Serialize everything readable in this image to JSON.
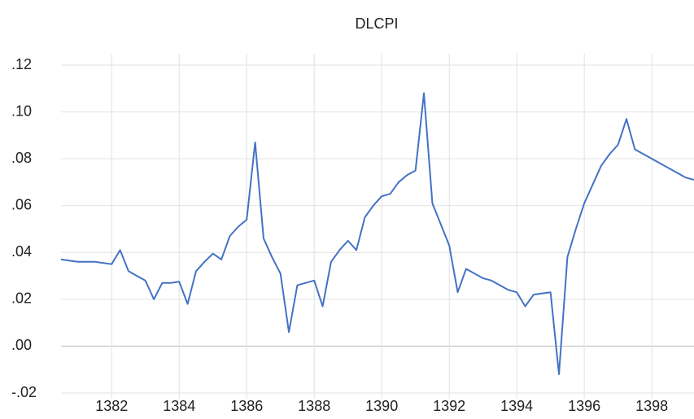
{
  "chart_data": {
    "type": "line",
    "title": "DLCPI",
    "x": [
      1380.5,
      1380.75,
      1381,
      1381.25,
      1381.5,
      1381.75,
      1382,
      1382.25,
      1382.5,
      1382.75,
      1383,
      1383.25,
      1383.5,
      1383.75,
      1384,
      1384.25,
      1384.5,
      1384.75,
      1385,
      1385.25,
      1385.5,
      1385.75,
      1386,
      1386.25,
      1386.5,
      1386.75,
      1387,
      1387.25,
      1387.5,
      1387.75,
      1388,
      1388.25,
      1388.5,
      1388.75,
      1389,
      1389.25,
      1389.5,
      1389.75,
      1390,
      1390.25,
      1390.5,
      1390.75,
      1391,
      1391.25,
      1391.5,
      1391.75,
      1392,
      1392.25,
      1392.5,
      1392.75,
      1393,
      1393.25,
      1393.5,
      1393.75,
      1394,
      1394.25,
      1394.5,
      1394.75,
      1395,
      1395.25,
      1395.5,
      1395.75,
      1396,
      1396.25,
      1396.5,
      1396.75,
      1397,
      1397.25,
      1397.5,
      1397.75,
      1398,
      1398.25,
      1398.5,
      1398.75,
      1399,
      1399.25
    ],
    "series": [
      {
        "name": "DLCPI",
        "color": "#4472c4",
        "values": [
          0.037,
          0.0365,
          0.036,
          0.036,
          0.036,
          0.0355,
          0.035,
          0.041,
          0.032,
          0.03,
          0.028,
          0.02,
          0.027,
          0.027,
          0.0275,
          0.018,
          0.032,
          0.036,
          0.0395,
          0.037,
          0.047,
          0.051,
          0.054,
          0.087,
          0.046,
          0.038,
          0.031,
          0.006,
          0.026,
          0.027,
          0.028,
          0.017,
          0.036,
          0.041,
          0.045,
          0.041,
          0.055,
          0.06,
          0.064,
          0.065,
          0.07,
          0.073,
          0.075,
          0.108,
          0.061,
          0.052,
          0.043,
          0.023,
          0.033,
          0.031,
          0.029,
          0.028,
          0.026,
          0.024,
          0.023,
          0.017,
          0.022,
          0.0225,
          0.023,
          -0.012,
          0.038,
          0.05,
          0.061,
          0.069,
          0.077,
          0.082,
          0.086,
          0.097,
          0.084,
          0.082,
          0.08,
          0.078,
          0.076,
          0.074,
          0.072,
          0.071
        ]
      }
    ],
    "xlim": [
      1380.5,
      1399.25
    ],
    "xticks": [
      1382,
      1384,
      1386,
      1388,
      1390,
      1392,
      1394,
      1396,
      1398
    ],
    "ylim": [
      -0.02,
      0.12
    ],
    "yticks": [
      {
        "value": -0.02,
        "label": "-.02"
      },
      {
        "value": 0,
        "label": ".00"
      },
      {
        "value": 0.02,
        "label": ".02"
      },
      {
        "value": 0.04,
        "label": ".04"
      },
      {
        "value": 0.06,
        "label": ".06"
      },
      {
        "value": 0.08,
        "label": ".08"
      },
      {
        "value": 0.1,
        "label": ".10"
      },
      {
        "value": 0.12,
        "label": ".12"
      }
    ],
    "grid": true
  }
}
